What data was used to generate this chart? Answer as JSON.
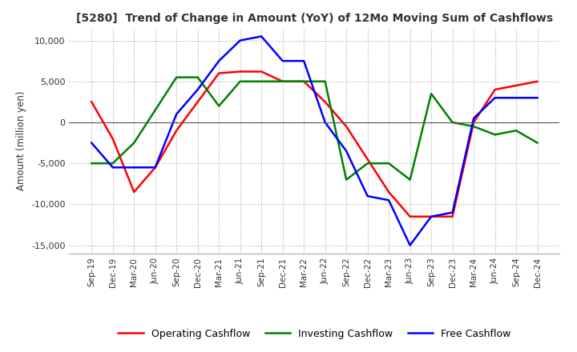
{
  "title": "[5280]  Trend of Change in Amount (YoY) of 12Mo Moving Sum of Cashflows",
  "ylabel": "Amount (million yen)",
  "ylim": [
    -16000,
    11500
  ],
  "yticks": [
    -15000,
    -10000,
    -5000,
    0,
    5000,
    10000
  ],
  "x_labels": [
    "Sep-19",
    "Dec-19",
    "Mar-20",
    "Jun-20",
    "Sep-20",
    "Dec-20",
    "Mar-21",
    "Jun-21",
    "Sep-21",
    "Dec-21",
    "Mar-22",
    "Jun-22",
    "Sep-22",
    "Dec-22",
    "Mar-23",
    "Jun-23",
    "Sep-23",
    "Dec-23",
    "Mar-24",
    "Jun-24",
    "Sep-24",
    "Dec-24"
  ],
  "operating": [
    2500,
    -2000,
    -8500,
    -5500,
    -1000,
    2500,
    6000,
    6200,
    6200,
    5000,
    5000,
    2500,
    -500,
    -4500,
    -8500,
    -11500,
    -11500,
    -11500,
    0,
    4000,
    4500,
    5000
  ],
  "investing": [
    -5000,
    -5000,
    -2500,
    1500,
    5500,
    5500,
    2000,
    5000,
    5000,
    5000,
    5000,
    5000,
    -7000,
    -5000,
    -5000,
    -7000,
    3500,
    0,
    -500,
    -1500,
    -1000,
    -2500
  ],
  "free": [
    -2500,
    -5500,
    -5500,
    -5500,
    1000,
    4000,
    7500,
    10000,
    10500,
    7500,
    7500,
    0,
    -3500,
    -9000,
    -9500,
    -15000,
    -11500,
    -11000,
    500,
    3000,
    3000,
    3000
  ],
  "operating_color": "#ff0000",
  "investing_color": "#008000",
  "free_color": "#0000ff",
  "background_color": "#ffffff",
  "grid_color": "#aaaaaa"
}
